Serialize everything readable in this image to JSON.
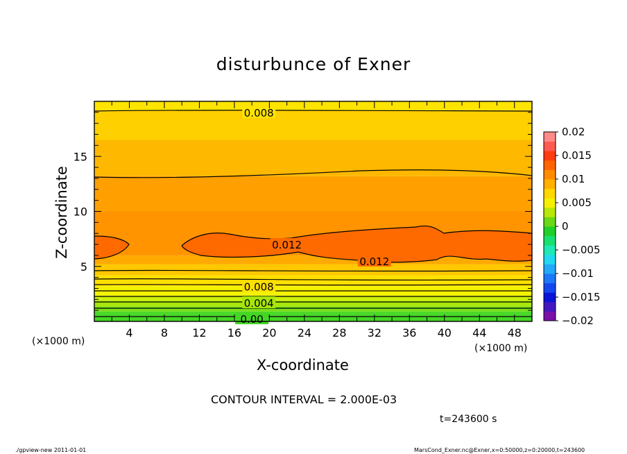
{
  "chart_data": {
    "type": "contour",
    "title": "disturbunce of Exner",
    "xlabel": "X-coordinate",
    "ylabel": "Z-coordinate",
    "x_unit": "(×1000 m)",
    "y_unit": "(×1000 m)",
    "xlim": [
      0,
      50
    ],
    "ylim": [
      0,
      20
    ],
    "x_ticks": [
      4,
      8,
      12,
      16,
      20,
      24,
      28,
      32,
      36,
      40,
      44,
      48
    ],
    "y_ticks": [
      5,
      10,
      15
    ],
    "contour_interval_text": "CONTOUR INTERVAL = 2.000E-03",
    "time_text": "t=243600 s",
    "colorbar": {
      "min": -0.02,
      "max": 0.02,
      "ticks": [
        "0.02",
        "0.015",
        "0.01",
        "0.005",
        "0",
        "−0.005",
        "−0.01",
        "−0.015",
        "−0.02"
      ],
      "colors": [
        "#7a10a8",
        "#4218c0",
        "#0a14d6",
        "#1446f0",
        "#1c78f6",
        "#22aaf8",
        "#20d8f0",
        "#1ee8b4",
        "#18e070",
        "#20d028",
        "#6ad814",
        "#b8e80a",
        "#f4f000",
        "#ffd800",
        "#ffb000",
        "#ff8c00",
        "#ff6400",
        "#ff3c10",
        "#ff5a50",
        "#ff8a8a"
      ]
    },
    "contour_labels": [
      {
        "text": "0.008",
        "x": 18.8,
        "z": 19.0
      },
      {
        "text": "0.012",
        "x": 22.0,
        "z": 7.0
      },
      {
        "text": "0.012",
        "x": 32.0,
        "z": 5.5
      },
      {
        "text": "0.008",
        "x": 18.8,
        "z": 3.2
      },
      {
        "text": "0.004",
        "x": 18.8,
        "z": 1.7
      },
      {
        "text": "0.00",
        "x": 18.0,
        "z": 0.25
      }
    ],
    "bands": [
      {
        "z": 0.0,
        "color": "#44d624"
      },
      {
        "z": 0.5,
        "color": "#4ad82a"
      },
      {
        "z": 0.9,
        "color": "#78de18"
      },
      {
        "z": 1.35,
        "color": "#a8e60c"
      },
      {
        "z": 1.9,
        "color": "#cfee06"
      },
      {
        "z": 2.35,
        "color": "#f4f200"
      },
      {
        "z": 3.2,
        "color": "#ffe000"
      },
      {
        "z": 4.2,
        "color": "#ffc800"
      },
      {
        "z": 5.2,
        "color": "#ffaa00"
      },
      {
        "z": 6.0,
        "color": "#ff9400"
      },
      {
        "z": 10.0,
        "color": "#ffa000"
      },
      {
        "z": 13.2,
        "color": "#ffb800"
      },
      {
        "z": 16.5,
        "color": "#ffd000"
      },
      {
        "z": 19.2,
        "color": "#ffe400"
      }
    ]
  },
  "footer": {
    "left": "./gpview-new   2011-01-01",
    "right": "MarsCond_Exner.nc@Exner,x=0:50000,z=0:20000,t=243600"
  }
}
